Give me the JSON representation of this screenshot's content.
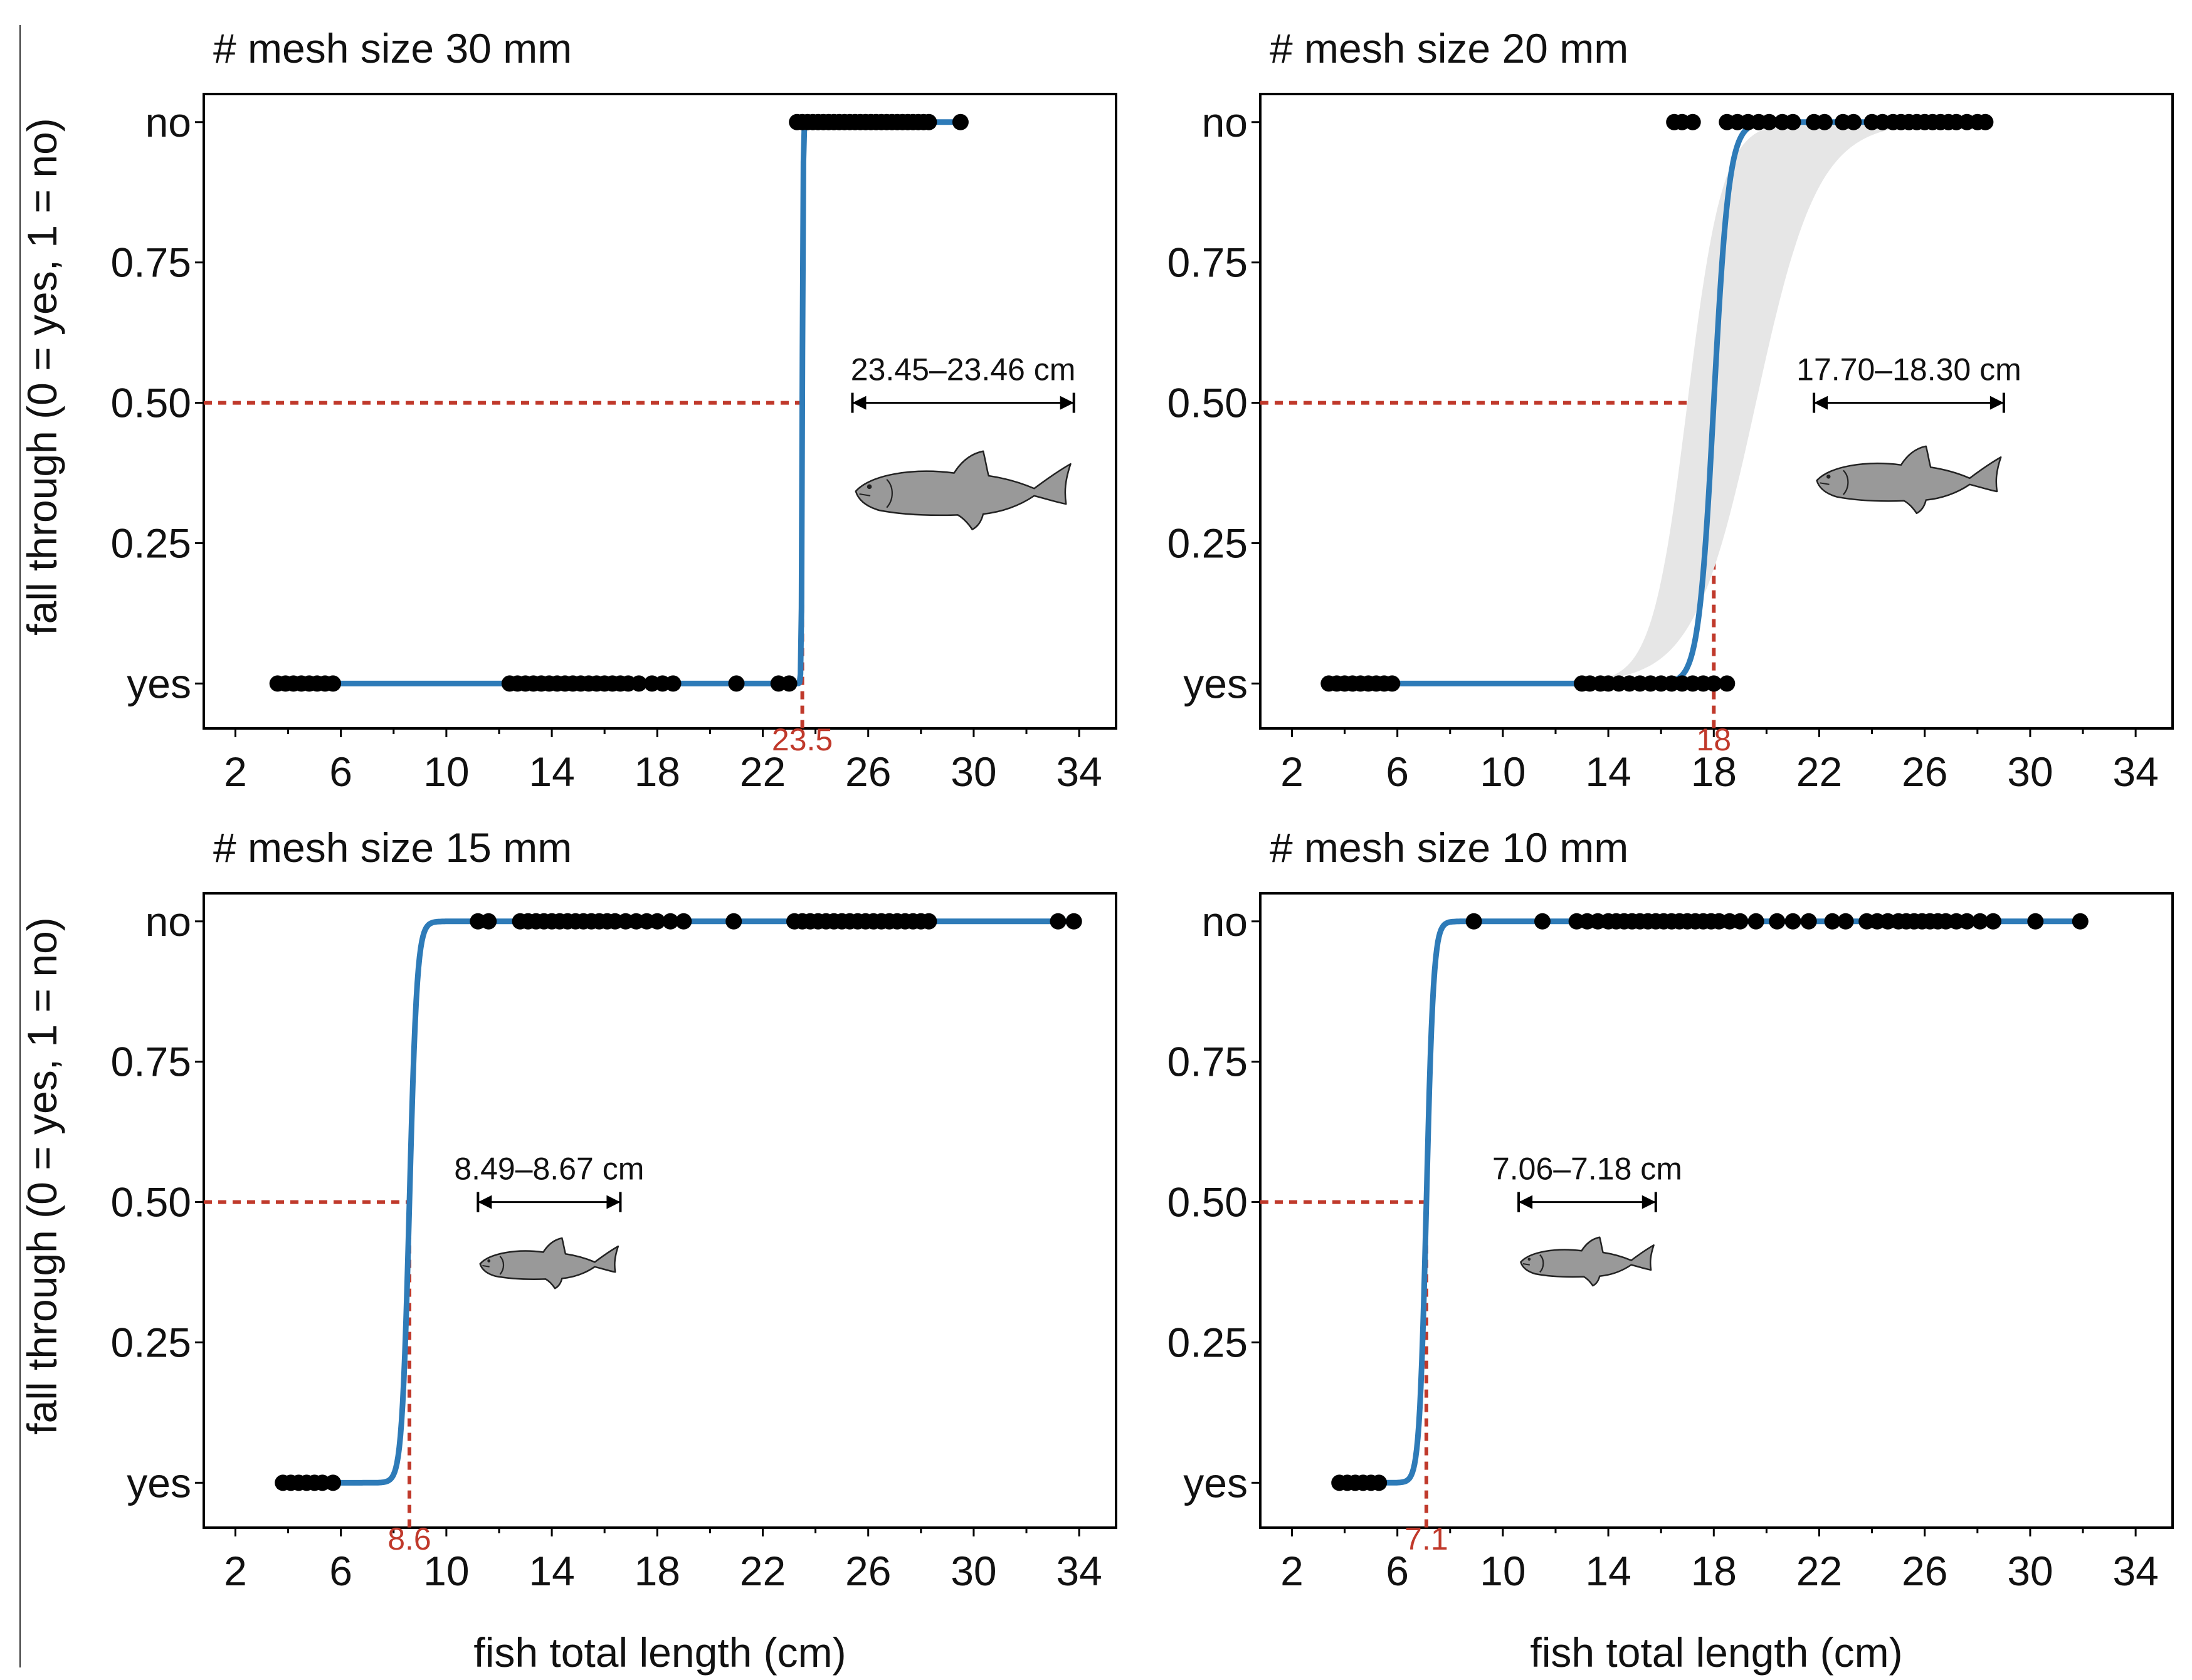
{
  "chart_data": [
    {
      "type": "scatter",
      "title": "# mesh size 30 mm",
      "xlabel": "fish total length (cm)",
      "ylabel": "fall through (0 = yes, 1 = no)",
      "xlim": [
        0.8,
        35.4
      ],
      "ylim": [
        -0.08,
        1.05
      ],
      "x_ticks": [
        2,
        6,
        10,
        14,
        18,
        22,
        26,
        30,
        34
      ],
      "y_ticks": [
        0,
        0.25,
        0.5,
        0.75,
        1
      ],
      "y_tick_labels": [
        "yes",
        "0.25",
        "0.50",
        "0.75",
        "no"
      ],
      "points_no": [
        23.3,
        23.5,
        23.7,
        23.9,
        24.1,
        24.3,
        24.5,
        24.7,
        24.9,
        25.1,
        25.3,
        25.5,
        25.7,
        25.9,
        26.1,
        26.3,
        26.5,
        26.7,
        26.9,
        27.1,
        27.3,
        27.5,
        27.7,
        27.9,
        28.1,
        28.3,
        29.5
      ],
      "points_yes": [
        3.6,
        3.9,
        4.2,
        4.5,
        4.8,
        5.1,
        5.4,
        5.7,
        12.4,
        12.7,
        13.0,
        13.3,
        13.6,
        13.9,
        14.2,
        14.5,
        14.8,
        15.1,
        15.4,
        15.7,
        16.0,
        16.3,
        16.6,
        16.9,
        17.3,
        17.8,
        18.2,
        18.6,
        21.0,
        22.6,
        23.0
      ],
      "curve": {
        "x0": 23.5,
        "k": 60,
        "x_start": 3.6,
        "x_end": 29.5
      },
      "confidence_band": null,
      "threshold": 23.5,
      "threshold_label": "23.5",
      "range_label": "23.45–23.46 cm",
      "range_arrow": [
        25.4,
        33.8
      ]
    },
    {
      "type": "scatter",
      "title": "# mesh size 20 mm",
      "xlabel": "",
      "ylabel": "",
      "xlim": [
        0.8,
        35.4
      ],
      "ylim": [
        -0.08,
        1.05
      ],
      "x_ticks": [
        2,
        6,
        10,
        14,
        18,
        22,
        26,
        30,
        34
      ],
      "y_ticks": [
        0,
        0.25,
        0.5,
        0.75,
        1
      ],
      "y_tick_labels": [
        "yes",
        "0.25",
        "0.50",
        "0.75",
        "no"
      ],
      "points_no": [
        16.5,
        16.8,
        17.2,
        18.5,
        18.9,
        19.3,
        19.7,
        20.1,
        20.6,
        21.0,
        21.8,
        22.2,
        22.9,
        23.3,
        24.0,
        24.4,
        24.8,
        25.1,
        25.4,
        25.7,
        26.0,
        26.3,
        26.6,
        26.9,
        27.2,
        27.6,
        28.0,
        28.3
      ],
      "points_yes": [
        3.4,
        3.7,
        4.0,
        4.3,
        4.6,
        4.9,
        5.2,
        5.5,
        5.8,
        13.0,
        13.3,
        13.7,
        14.0,
        14.4,
        14.8,
        15.2,
        15.6,
        16.0,
        16.4,
        16.8,
        17.2,
        17.6,
        18.0,
        18.5
      ],
      "curve": {
        "x0": 18.0,
        "k": 3.5,
        "x_start": 3.4,
        "x_end": 28.3
      },
      "confidence_band": {
        "lower_x0": 17.0,
        "lower_k": 1.5,
        "upper_x0": 19.6,
        "upper_k": 0.85,
        "x_start": 11.5,
        "x_end": 28.3
      },
      "threshold": 18,
      "threshold_label": "18",
      "range_label": "17.70–18.30 cm",
      "range_arrow": [
        21.8,
        29.0
      ]
    },
    {
      "type": "scatter",
      "title": "# mesh size 15 mm",
      "xlabel": "fish total length (cm)",
      "ylabel": "fall through (0 = yes, 1 = no)",
      "xlim": [
        0.8,
        35.4
      ],
      "ylim": [
        -0.08,
        1.05
      ],
      "x_ticks": [
        2,
        6,
        10,
        14,
        18,
        22,
        26,
        30,
        34
      ],
      "y_ticks": [
        0,
        0.25,
        0.5,
        0.75,
        1
      ],
      "y_tick_labels": [
        "yes",
        "0.25",
        "0.50",
        "0.75",
        "no"
      ],
      "points_no": [
        11.2,
        11.6,
        12.8,
        13.1,
        13.4,
        13.7,
        14.0,
        14.3,
        14.6,
        14.9,
        15.2,
        15.5,
        15.8,
        16.1,
        16.4,
        16.8,
        17.2,
        17.6,
        18.0,
        18.5,
        19.0,
        20.9,
        23.2,
        23.5,
        23.8,
        24.1,
        24.4,
        24.7,
        25.0,
        25.3,
        25.6,
        25.9,
        26.2,
        26.5,
        26.8,
        27.1,
        27.4,
        27.7,
        28.0,
        28.3,
        33.2,
        33.8
      ],
      "points_yes": [
        3.8,
        4.1,
        4.4,
        4.7,
        5.0,
        5.3,
        5.7
      ],
      "curve": {
        "x0": 8.6,
        "k": 7,
        "x_start": 3.8,
        "x_end": 33.8
      },
      "confidence_band": null,
      "threshold": 8.6,
      "threshold_label": "8.6",
      "range_label": "8.49–8.67 cm",
      "range_arrow": [
        11.2,
        16.6
      ]
    },
    {
      "type": "scatter",
      "title": "# mesh size 10 mm",
      "xlabel": "fish total length (cm)",
      "ylabel": "",
      "xlim": [
        0.8,
        35.4
      ],
      "ylim": [
        -0.08,
        1.05
      ],
      "x_ticks": [
        2,
        6,
        10,
        14,
        18,
        22,
        26,
        30,
        34
      ],
      "y_ticks": [
        0,
        0.25,
        0.5,
        0.75,
        1
      ],
      "y_tick_labels": [
        "yes",
        "0.25",
        "0.50",
        "0.75",
        "no"
      ],
      "points_no": [
        8.9,
        11.5,
        12.8,
        13.2,
        13.6,
        14.0,
        14.3,
        14.6,
        14.9,
        15.2,
        15.5,
        15.8,
        16.1,
        16.4,
        16.7,
        17.0,
        17.3,
        17.6,
        17.9,
        18.2,
        18.6,
        19.0,
        19.6,
        20.4,
        21.0,
        21.6,
        22.5,
        23.0,
        23.8,
        24.2,
        24.6,
        25.0,
        25.3,
        25.6,
        25.9,
        26.2,
        26.5,
        26.8,
        27.2,
        27.6,
        28.1,
        28.6,
        30.2,
        31.9
      ],
      "points_yes": [
        3.8,
        4.1,
        4.4,
        4.7,
        5.0,
        5.3
      ],
      "curve": {
        "x0": 7.1,
        "k": 7.5,
        "x_start": 3.8,
        "x_end": 31.9
      },
      "confidence_band": null,
      "threshold": 7.1,
      "threshold_label": "7.1",
      "range_label": "7.06–7.18 cm",
      "range_arrow": [
        10.6,
        15.8
      ]
    }
  ],
  "colors": {
    "curve": "#2e7bb8",
    "threshold": "#c0392b",
    "points": "#000000",
    "band": "#e6e6e6",
    "fish_fill": "#999999"
  },
  "icons": [
    "fish-icon"
  ]
}
